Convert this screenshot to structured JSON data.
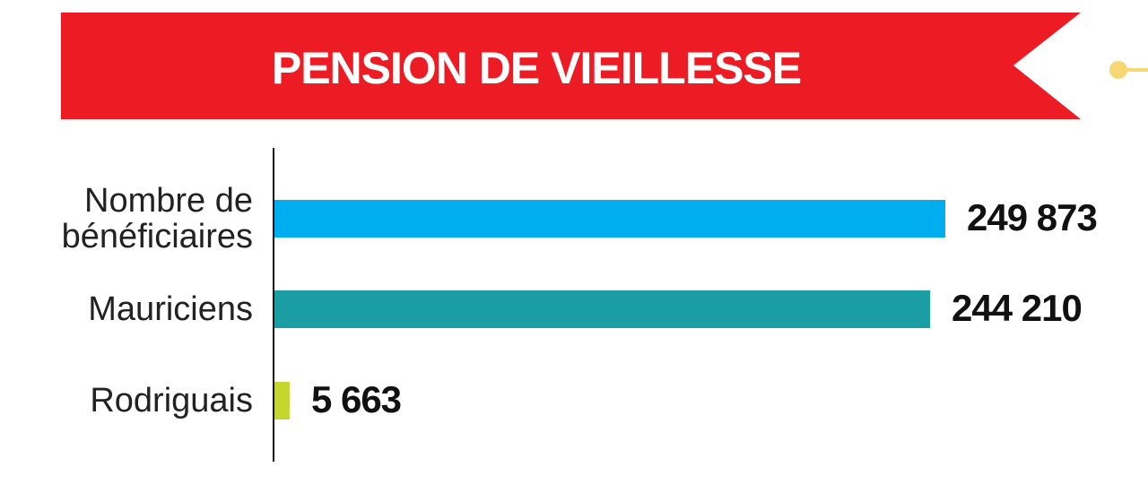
{
  "chart_data": {
    "type": "bar",
    "orientation": "horizontal",
    "title": "PENSION DE VIEILLESSE",
    "categories": [
      "Nombre de bénéficiaires",
      "Mauriciens",
      "Rodriguais"
    ],
    "values": [
      249873,
      244210,
      5663
    ],
    "value_labels": [
      "249 873",
      "244 210",
      "5 663"
    ],
    "colors": [
      "#00aeef",
      "#1a9ea3",
      "#c4d72e"
    ]
  }
}
